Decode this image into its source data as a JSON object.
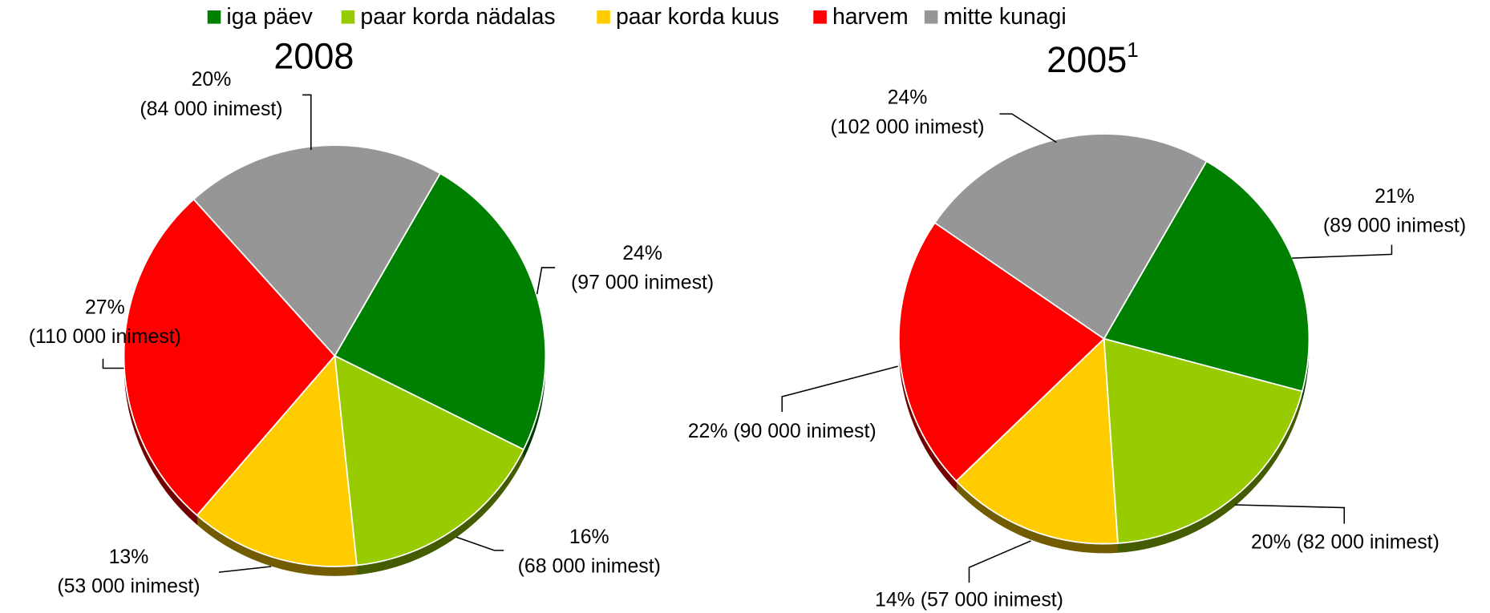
{
  "legend": {
    "categories": [
      "iga päev",
      "paar korda nädalas",
      "paar korda kuus",
      "harvem",
      "mitte kunagi"
    ],
    "colors": [
      "#008000",
      "#99cc00",
      "#ffcc00",
      "#ff0000",
      "#969696"
    ]
  },
  "chart_data": [
    {
      "type": "pie",
      "title": "2008",
      "values": [
        24,
        16,
        13,
        27,
        20
      ],
      "value_labels": [
        "24%",
        "16%",
        "13%",
        "27%",
        "20%"
      ],
      "count_labels": [
        "(97 000 inimest)",
        "(68 000 inimest)",
        "(53 000 inimest)",
        "(110 000  inimest)",
        "(84 000 inimest)"
      ]
    },
    {
      "type": "pie",
      "title": "2005",
      "title_sup": "1",
      "values": [
        21,
        20,
        14,
        22,
        24
      ],
      "value_labels": [
        "21%",
        "20%",
        "14%",
        "22%",
        "24%"
      ],
      "count_labels": [
        "(89 000 inimest)",
        "(82 000 inimest)",
        "(57 000 inimest)",
        "(90 000 inimest)",
        "(102 000 inimest)"
      ]
    }
  ]
}
